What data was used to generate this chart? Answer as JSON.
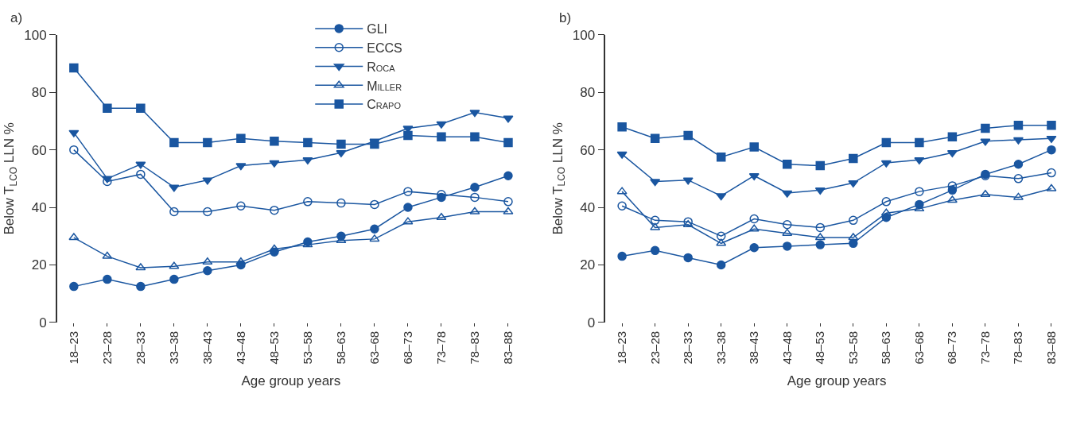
{
  "chart_data": [
    {
      "type": "line",
      "title": "a)",
      "xlabel": "Age group years",
      "ylabel": "Below T$_{LCO}$ LLN %",
      "categories": [
        "18–23",
        "23–28",
        "28–33",
        "33–38",
        "38–43",
        "43–48",
        "48–53",
        "53–58",
        "58–63",
        "63–68",
        "68–73",
        "73–78",
        "78–83",
        "83–88"
      ],
      "ylim": [
        0,
        100
      ],
      "yticks": [
        0,
        20,
        40,
        60,
        80,
        100
      ],
      "legend": "top right",
      "line_style": "solid",
      "series": [
        {
          "name": "GLI",
          "color": "#1a56a0",
          "marker": "circle",
          "values": [
            12.5,
            15,
            12.5,
            15,
            18,
            20,
            24.5,
            28,
            30,
            32.5,
            40,
            43.5,
            47,
            51
          ]
        },
        {
          "name": "ECCS",
          "color": "#1a56a0",
          "marker": "circle-open",
          "values": [
            60,
            49,
            51.5,
            38.5,
            38.5,
            40.5,
            39,
            42,
            41.5,
            41,
            45.5,
            44.5,
            43.5,
            42
          ]
        },
        {
          "name": "Roca",
          "color": "#1a56a0",
          "marker": "triangle-down",
          "values": [
            66,
            50,
            55,
            47,
            49.5,
            54.5,
            55.5,
            56.5,
            59,
            63,
            67.5,
            69,
            73,
            71
          ]
        },
        {
          "name": "Miller",
          "color": "#1a56a0",
          "marker": "triangle-up-open",
          "values": [
            29.5,
            23,
            19,
            19.5,
            21,
            21,
            25.5,
            27,
            28.5,
            29,
            35,
            36.5,
            38.5,
            38.5
          ]
        },
        {
          "name": "Crapo",
          "color": "#1a56a0",
          "marker": "square",
          "values": [
            88.5,
            74.5,
            74.5,
            62.5,
            62.5,
            64,
            63,
            62.5,
            62,
            62,
            65,
            64.5,
            64.5,
            62.5
          ]
        }
      ]
    },
    {
      "type": "line",
      "title": "b)",
      "xlabel": "Age group years",
      "ylabel": "Below T$_{LCO}$ LLN %",
      "categories": [
        "18–23",
        "23–28",
        "28–33",
        "33–38",
        "38–43",
        "43–48",
        "48–53",
        "53–58",
        "58–63",
        "63–68",
        "68–73",
        "73–78",
        "78–83",
        "83–88"
      ],
      "ylim": [
        0,
        100
      ],
      "yticks": [
        0,
        20,
        40,
        60,
        80,
        100
      ],
      "legend": false,
      "line_style": "solid",
      "series": [
        {
          "color": "#1a56a0",
          "marker": "circle",
          "values": [
            23,
            25,
            22.5,
            20,
            26,
            26.5,
            27,
            27.5,
            36.5,
            41,
            46,
            51.5,
            55,
            60
          ]
        },
        {
          "color": "#1a56a0",
          "marker": "circle-open",
          "values": [
            40.5,
            35.5,
            35,
            30,
            36,
            34,
            33,
            35.5,
            42,
            45.5,
            47.5,
            51,
            50,
            52
          ]
        },
        {
          "color": "#1a56a0",
          "marker": "triangle-down",
          "values": [
            58.5,
            49,
            49.5,
            44,
            51,
            45,
            46,
            48.5,
            55.5,
            56.5,
            59,
            63,
            63.5,
            64
          ]
        },
        {
          "color": "#1a56a0",
          "marker": "triangle-up-open",
          "values": [
            45.5,
            33,
            34,
            27.5,
            32.5,
            31,
            29.5,
            29.5,
            38,
            39.5,
            42.5,
            44.5,
            43.5,
            46.5
          ]
        },
        {
          "color": "#1a56a0",
          "marker": "square",
          "values": [
            68,
            64,
            65,
            57.5,
            61,
            55,
            54.5,
            57,
            62.5,
            62.5,
            64.5,
            67.5,
            68.5,
            68.5
          ]
        }
      ]
    }
  ]
}
